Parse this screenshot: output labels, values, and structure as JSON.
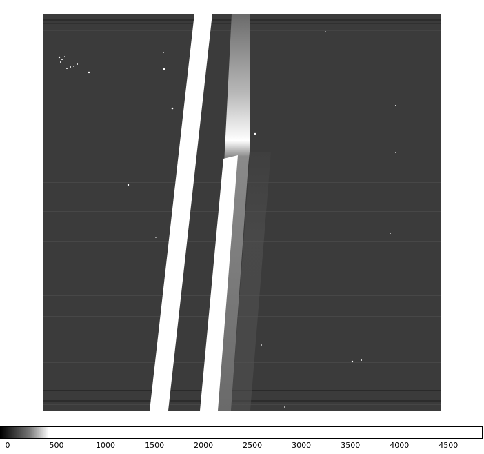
{
  "image": {
    "description_type": "astronomical-spectral-frame",
    "background_color": "#3b3b3b",
    "bright_band_color": "#ffffff",
    "secondary_band_color": "#7a7a7a"
  },
  "colorbar": {
    "ticks": [
      {
        "label": "0",
        "value": 0
      },
      {
        "label": "500",
        "value": 500
      },
      {
        "label": "1000",
        "value": 1000
      },
      {
        "label": "1500",
        "value": 1500
      },
      {
        "label": "2000",
        "value": 2000
      },
      {
        "label": "2500",
        "value": 2500
      },
      {
        "label": "3000",
        "value": 3000
      },
      {
        "label": "3500",
        "value": 3500
      },
      {
        "label": "4000",
        "value": 4000
      },
      {
        "label": "4500",
        "value": 4500
      }
    ],
    "min": 0,
    "max": 4850
  }
}
